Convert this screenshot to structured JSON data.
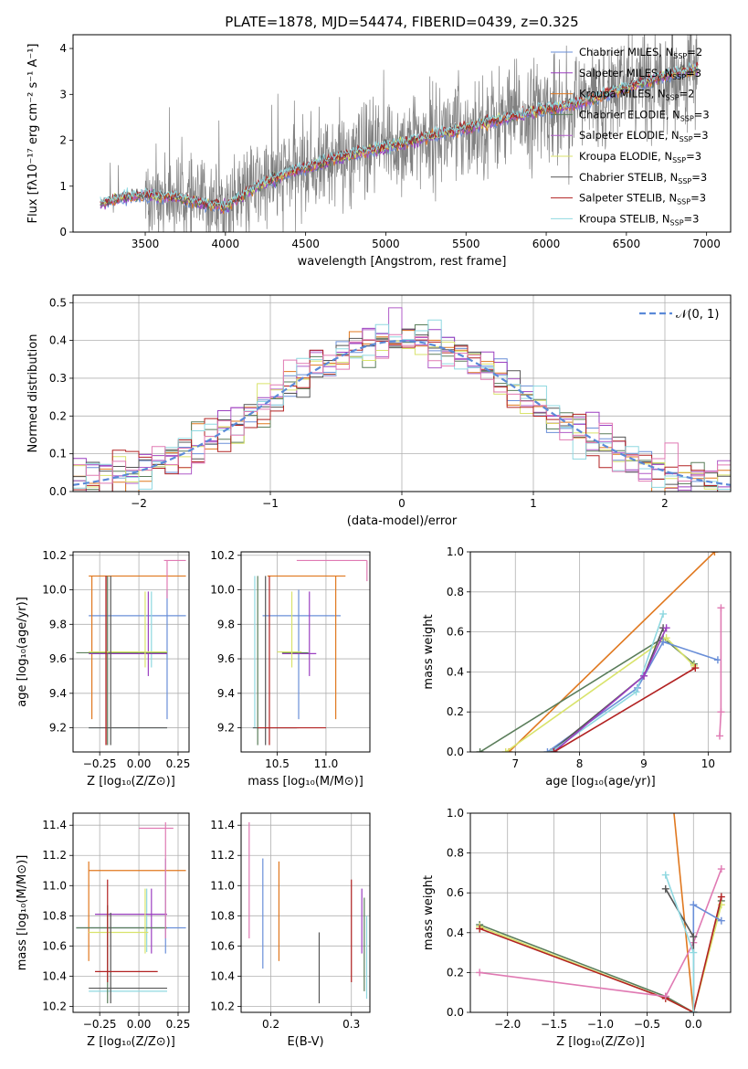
{
  "figure": {
    "title": "PLATE=1878, MJD=54474, FIBERID=0439, z=0.325"
  },
  "colors": {
    "Chabrier MILES": "#6a8fd8",
    "Salpeter MILES": "#9b3fc0",
    "Kroupa MILES": "#e0781f",
    "Chabrier ELODIE": "#5a7d5a",
    "Salpeter ELODIE": "#b05cc8",
    "Kroupa ELODIE": "#d9e36b",
    "Chabrier STELIB": "#555555",
    "Salpeter STELIB": "#b22222",
    "Kroupa STELIB": "#8fd8e0",
    "pink": "#e07ab3",
    "grey_spectrum": "#808080",
    "normal_curve": "#5b8ad8"
  },
  "chart_data": [
    {
      "panel": "spectrum",
      "type": "line",
      "title": "PLATE=1878, MJD=54474, FIBERID=0439, z=0.325",
      "xlabel": "wavelength [Angstrom, rest frame]",
      "ylabel": "Flux [fλ10⁻¹⁷ erg cm⁻² s⁻¹ A⁻¹]",
      "xlim": [
        3050,
        7150
      ],
      "ylim": [
        0,
        4.3
      ],
      "xticks": [
        3500,
        4000,
        4500,
        5000,
        5500,
        6000,
        6500,
        7000
      ],
      "yticks": [
        0,
        1,
        2,
        3,
        4
      ],
      "legend_position": "top-right",
      "legend": [
        {
          "label": "Chabrier MILES, N",
          "sub": "SSP",
          "tail": "=2"
        },
        {
          "label": "Salpeter MILES, N",
          "sub": "SSP",
          "tail": "=3"
        },
        {
          "label": "Kroupa MILES, N",
          "sub": "SSP",
          "tail": "=2"
        },
        {
          "label": "Chabrier ELODIE, N",
          "sub": "SSP",
          "tail": "=3"
        },
        {
          "label": "Salpeter ELODIE, N",
          "sub": "SSP",
          "tail": "=3"
        },
        {
          "label": "Kroupa ELODIE, N",
          "sub": "SSP",
          "tail": "=3"
        },
        {
          "label": "Chabrier STELIB, N",
          "sub": "SSP",
          "tail": "=3"
        },
        {
          "label": "Salpeter STELIB, N",
          "sub": "SSP",
          "tail": "=3"
        },
        {
          "label": "Kroupa STELIB, N",
          "sub": "SSP",
          "tail": "=3"
        }
      ],
      "model_continuum": {
        "x": [
          3220,
          3350,
          3500,
          3700,
          3900,
          4000,
          4200,
          4400,
          4600,
          4800,
          5000,
          5300,
          5600,
          5900,
          6200,
          6500,
          6800,
          6950
        ],
        "y": [
          0.6,
          0.75,
          0.8,
          0.75,
          0.6,
          0.55,
          1.0,
          1.3,
          1.5,
          1.7,
          1.85,
          2.1,
          2.35,
          2.6,
          2.8,
          3.15,
          3.45,
          3.55
        ]
      }
    },
    {
      "panel": "residual-histogram",
      "type": "line",
      "xlabel": "(data-model)/error",
      "ylabel": "Normed distribution",
      "xlim": [
        -2.5,
        2.5
      ],
      "ylim": [
        0,
        0.52
      ],
      "xticks": [
        -2,
        -1,
        0,
        1,
        2
      ],
      "yticks": [
        0.0,
        0.1,
        0.2,
        0.3,
        0.4,
        0.5
      ],
      "legend": "𝒩(0, 1)",
      "legend_position": "top-right",
      "bin_width": 0.1
    },
    {
      "panel": "age-vs-Z",
      "type": "scatter",
      "xlabel": "Z [log₁₀(Z/Z⊙)]",
      "ylabel": "age  [log₁₀(age/yr)]",
      "xlim": [
        -0.42,
        0.32
      ],
      "ylim": [
        9.06,
        10.22
      ],
      "xticks": [
        -0.25,
        0.0,
        0.25
      ],
      "xticklabels": [
        "−0.25",
        "0.00",
        "0.25"
      ],
      "yticks": [
        9.2,
        9.4,
        9.6,
        9.8,
        10.0,
        10.2
      ],
      "errorbars": [
        {
          "color": "#6a8fd8",
          "x": [
            -0.32,
            0.3
          ],
          "y": [
            9.85,
            9.85
          ],
          "vx": 0.18,
          "vy": [
            9.25,
            10.0
          ]
        },
        {
          "color": "#e0781f",
          "x": [
            -0.32,
            0.3
          ],
          "y": [
            10.08,
            10.08
          ],
          "vx": -0.3,
          "vy": [
            9.25,
            10.08
          ]
        },
        {
          "color": "#8fd8e0",
          "x": [
            -0.32,
            0.18
          ],
          "y": [
            9.2,
            9.2
          ],
          "vx": 0.08,
          "vy": [
            9.55,
            9.99
          ]
        },
        {
          "color": "#9b3fc0",
          "x": [
            -0.32,
            0.18
          ],
          "y": [
            9.63,
            9.63
          ],
          "vx": 0.06,
          "vy": [
            9.5,
            9.99
          ]
        },
        {
          "color": "#5a7d5a",
          "x": [
            -0.4,
            0.18
          ],
          "y": [
            9.635,
            9.635
          ],
          "vx": -0.2,
          "vy": [
            9.1,
            10.08
          ]
        },
        {
          "color": "#d9e36b",
          "x": [
            -0.32,
            0.18
          ],
          "y": [
            9.64,
            9.64
          ],
          "vx": 0.04,
          "vy": [
            9.55,
            9.99
          ]
        },
        {
          "color": "#555555",
          "x": [
            -0.32,
            0.18
          ],
          "y": [
            9.2,
            9.2
          ],
          "vx": -0.18,
          "vy": [
            9.1,
            10.08
          ]
        },
        {
          "color": "#b22222",
          "x": [
            -0.21,
            -0.21
          ],
          "y": [
            9.1,
            10.08
          ],
          "vx": -0.21,
          "vy": [
            9.1,
            10.08
          ]
        },
        {
          "color": "#e07ab3",
          "x": [
            0.16,
            0.3
          ],
          "y": [
            10.17,
            10.17
          ],
          "vx": 0.18,
          "vy": [
            9.95,
            10.17
          ]
        }
      ]
    },
    {
      "panel": "age-vs-mass",
      "type": "scatter",
      "xlabel": "mass [log₁₀(M/M⊙)]",
      "xlim": [
        10.13,
        11.45
      ],
      "ylim": [
        9.06,
        10.22
      ],
      "xticks": [
        10.5,
        11.0
      ],
      "yticks": [
        9.2,
        9.4,
        9.6,
        9.8,
        10.0,
        10.2
      ],
      "errorbars": [
        {
          "color": "#6a8fd8",
          "x": [
            10.35,
            11.15
          ],
          "y": [
            9.85,
            9.85
          ],
          "vx": 10.72,
          "vy": [
            9.25,
            10.0
          ]
        },
        {
          "color": "#e0781f",
          "x": [
            10.4,
            11.2
          ],
          "y": [
            10.08,
            10.08
          ],
          "vx": 11.1,
          "vy": [
            9.25,
            10.08
          ]
        },
        {
          "color": "#8fd8e0",
          "x": [
            10.25,
            10.72
          ],
          "y": [
            9.2,
            9.2
          ],
          "vx": 10.27,
          "vy": [
            9.2,
            10.08
          ]
        },
        {
          "color": "#9b3fc0",
          "x": [
            10.55,
            10.9
          ],
          "y": [
            9.63,
            9.63
          ],
          "vx": 10.83,
          "vy": [
            9.5,
            9.99
          ]
        },
        {
          "color": "#5a7d5a",
          "x": [
            10.55,
            10.82
          ],
          "y": [
            9.635,
            9.635
          ],
          "vx": 10.3,
          "vy": [
            9.1,
            10.08
          ]
        },
        {
          "color": "#d9e36b",
          "x": [
            10.5,
            10.75
          ],
          "y": [
            9.64,
            9.64
          ],
          "vx": 10.65,
          "vy": [
            9.55,
            9.99
          ]
        },
        {
          "color": "#555555",
          "x": [
            10.25,
            10.7
          ],
          "y": [
            9.2,
            9.2
          ],
          "vx": 10.38,
          "vy": [
            9.1,
            10.08
          ]
        },
        {
          "color": "#b22222",
          "x": [
            10.3,
            11.0
          ],
          "y": [
            9.2,
            9.2
          ],
          "vx": 10.42,
          "vy": [
            9.1,
            10.08
          ]
        },
        {
          "color": "#e07ab3",
          "x": [
            10.7,
            11.42
          ],
          "y": [
            10.17,
            10.17
          ],
          "vx": 11.42,
          "vy": [
            10.05,
            10.17
          ]
        }
      ]
    },
    {
      "panel": "weight-vs-age",
      "type": "line",
      "xlabel": "age  [log₁₀(age/yr)]",
      "ylabel": "mass weight",
      "xlim": [
        6.3,
        10.35
      ],
      "ylim": [
        0,
        1.0
      ],
      "xticks": [
        7,
        8,
        9,
        10
      ],
      "yticks": [
        0.0,
        0.2,
        0.4,
        0.6,
        0.8,
        1.0
      ],
      "series": [
        {
          "color": "#e0781f",
          "x": [
            6.9,
            10.1
          ],
          "y": [
            0.0,
            1.0
          ]
        },
        {
          "color": "#5a7d5a",
          "x": [
            6.45,
            9.3,
            9.78
          ],
          "y": [
            0.0,
            0.57,
            0.44
          ]
        },
        {
          "color": "#d9e36b",
          "x": [
            6.85,
            9.35,
            9.78
          ],
          "y": [
            0.0,
            0.57,
            0.43
          ]
        },
        {
          "color": "#6a8fd8",
          "x": [
            7.5,
            8.9,
            9.3,
            10.15
          ],
          "y": [
            0.0,
            0.32,
            0.55,
            0.46
          ]
        },
        {
          "color": "#555555",
          "x": [
            7.55,
            9.0,
            9.3
          ],
          "y": [
            0.0,
            0.38,
            0.62
          ]
        },
        {
          "color": "#8fd8e0",
          "x": [
            7.55,
            8.88,
            9.3
          ],
          "y": [
            0.0,
            0.3,
            0.69
          ]
        },
        {
          "color": "#9b3fc0",
          "x": [
            7.6,
            9.0,
            9.35
          ],
          "y": [
            0.0,
            0.38,
            0.62
          ]
        },
        {
          "color": "#e07ab3",
          "x": [
            10.18,
            10.2,
            10.2
          ],
          "y": [
            0.08,
            0.2,
            0.72
          ]
        },
        {
          "color": "#b22222",
          "x": [
            7.6,
            9.8
          ],
          "y": [
            0.0,
            0.42
          ]
        }
      ]
    },
    {
      "panel": "mass-vs-Z",
      "type": "scatter",
      "xlabel": "Z [log₁₀(Z/Z⊙)]",
      "ylabel": "mass [log₁₀(M/M⊙)]",
      "xlim": [
        -0.42,
        0.32
      ],
      "ylim": [
        10.16,
        11.48
      ],
      "xticks": [
        -0.25,
        0.0,
        0.25
      ],
      "xticklabels": [
        "−0.25",
        "0.00",
        "0.25"
      ],
      "yticks": [
        10.2,
        10.4,
        10.6,
        10.8,
        11.0,
        11.2,
        11.4
      ],
      "errorbars": [
        {
          "color": "#6a8fd8",
          "x": [
            -0.4,
            0.3
          ],
          "y": [
            10.72,
            10.72
          ],
          "vx": 0.17,
          "vy": [
            10.55,
            11.18
          ]
        },
        {
          "color": "#e0781f",
          "x": [
            -0.32,
            0.3
          ],
          "y": [
            11.1,
            11.1
          ],
          "vx": -0.32,
          "vy": [
            10.5,
            11.16
          ]
        },
        {
          "color": "#8fd8e0",
          "x": [
            -0.32,
            0.18
          ],
          "y": [
            10.3,
            10.3
          ],
          "vx": 0.05,
          "vy": [
            10.56,
            10.98
          ]
        },
        {
          "color": "#9b3fc0",
          "x": [
            -0.28,
            0.18
          ],
          "y": [
            10.81,
            10.81
          ],
          "vx": 0.08,
          "vy": [
            10.55,
            10.98
          ]
        },
        {
          "color": "#5a7d5a",
          "x": [
            -0.4,
            0.18
          ],
          "y": [
            10.72,
            10.72
          ],
          "vx": -0.2,
          "vy": [
            10.22,
            10.87
          ]
        },
        {
          "color": "#d9e36b",
          "x": [
            -0.32,
            0.06
          ],
          "y": [
            10.69,
            10.69
          ],
          "vx": 0.04,
          "vy": [
            10.55,
            10.98
          ]
        },
        {
          "color": "#555555",
          "x": [
            -0.32,
            0.18
          ],
          "y": [
            10.32,
            10.32
          ],
          "vx": -0.18,
          "vy": [
            10.22,
            10.82
          ]
        },
        {
          "color": "#b22222",
          "x": [
            -0.28,
            0.12
          ],
          "y": [
            10.43,
            10.43
          ],
          "vx": -0.2,
          "vy": [
            10.36,
            11.04
          ]
        },
        {
          "color": "#e07ab3",
          "x": [
            0.0,
            0.22
          ],
          "y": [
            11.38,
            11.38
          ],
          "vx": 0.17,
          "vy": [
            10.65,
            11.42
          ]
        }
      ]
    },
    {
      "panel": "mass-vs-EBV",
      "type": "scatter",
      "xlabel": "E(B-V)",
      "xlim": [
        0.163,
        0.323
      ],
      "ylim": [
        10.16,
        11.48
      ],
      "xticks": [
        0.2,
        0.3
      ],
      "yticks": [
        10.2,
        10.4,
        10.6,
        10.8,
        11.0,
        11.2,
        11.4
      ],
      "errorbars": [
        {
          "color": "#e07ab3",
          "vx": 0.173,
          "vy": [
            10.65,
            11.42
          ]
        },
        {
          "color": "#6a8fd8",
          "vx": 0.19,
          "vy": [
            10.45,
            11.18
          ]
        },
        {
          "color": "#e0781f",
          "vx": 0.21,
          "vy": [
            10.5,
            11.16
          ]
        },
        {
          "color": "#555555",
          "vx": 0.26,
          "vy": [
            10.22,
            10.69
          ]
        },
        {
          "color": "#b22222",
          "vx": 0.3,
          "vy": [
            10.36,
            11.04
          ]
        },
        {
          "color": "#9b3fc0",
          "vx": 0.313,
          "vy": [
            10.55,
            10.98
          ]
        },
        {
          "color": "#5a7d5a",
          "vx": 0.316,
          "vy": [
            10.3,
            10.92
          ]
        },
        {
          "color": "#8fd8e0",
          "vx": 0.319,
          "vy": [
            10.25,
            10.8
          ]
        }
      ]
    },
    {
      "panel": "weight-vs-Z",
      "type": "line",
      "xlabel": "Z [log₁₀(Z/Z⊙)]",
      "ylabel": "mass weight",
      "xlim": [
        -2.4,
        0.4
      ],
      "ylim": [
        0,
        1.0
      ],
      "xticks": [
        -2.0,
        -1.5,
        -1.0,
        -0.5,
        0.0
      ],
      "xticklabels": [
        "−2.0",
        "−1.5",
        "−1.0",
        "−0.5",
        "0.0"
      ],
      "yticks": [
        0.0,
        0.2,
        0.4,
        0.6,
        0.8,
        1.0
      ],
      "series": [
        {
          "color": "#e0781f",
          "x": [
            -0.22,
            0.0
          ],
          "y": [
            1.05,
            0.0
          ]
        },
        {
          "color": "#5a7d5a",
          "x": [
            -2.3,
            -0.3,
            0.0,
            0.3
          ],
          "y": [
            0.44,
            0.08,
            0.0,
            0.56
          ]
        },
        {
          "color": "#d9e36b",
          "x": [
            -2.3,
            -0.3,
            0.0,
            0.3
          ],
          "y": [
            0.43,
            0.07,
            0.0,
            0.54
          ]
        },
        {
          "color": "#b22222",
          "x": [
            -2.3,
            -0.3,
            0.0,
            0.3
          ],
          "y": [
            0.42,
            0.07,
            0.0,
            0.58
          ]
        },
        {
          "color": "#e07ab3",
          "x": [
            -2.3,
            -0.3,
            0.0,
            0.3
          ],
          "y": [
            0.2,
            0.08,
            0.35,
            0.72
          ]
        },
        {
          "color": "#6a8fd8",
          "x": [
            0.0,
            0.0,
            0.3
          ],
          "y": [
            0.0,
            0.54,
            0.46
          ]
        },
        {
          "color": "#555555",
          "x": [
            -0.3,
            0.0,
            0.0
          ],
          "y": [
            0.62,
            0.38,
            0.0
          ]
        },
        {
          "color": "#8fd8e0",
          "x": [
            -0.3,
            0.0,
            0.0
          ],
          "y": [
            0.69,
            0.3,
            0.0
          ]
        }
      ]
    }
  ]
}
